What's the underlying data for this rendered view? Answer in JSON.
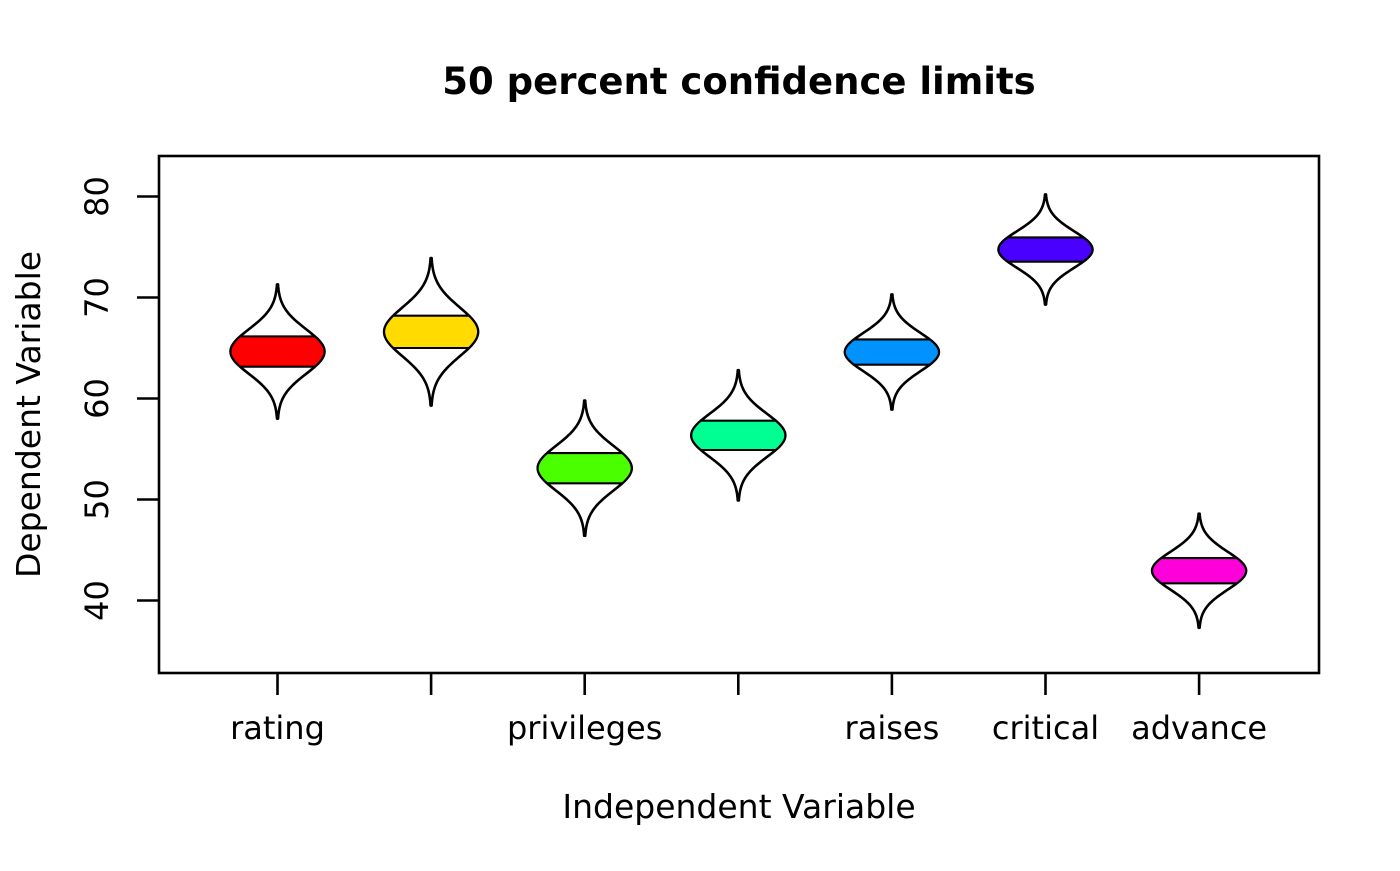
{
  "title": "50 percent confidence limits",
  "chart_data": {
    "type": "violin",
    "title": "50 percent confidence limits",
    "xlabel": "Independent Variable",
    "ylabel": "Dependent Variable",
    "y_ticks": [
      40,
      50,
      60,
      70,
      80
    ],
    "ylim": [
      33,
      84
    ],
    "grid": false,
    "legend": "none",
    "description": "Seven symmetric raindrop/violin shapes (normal-density outlines) each with a filled horizontal band marking the 50 percent confidence interval of the mean",
    "series": [
      {
        "label": "rating",
        "color": "#FF0000",
        "mean": 64.6,
        "ci50_low": 63.1,
        "ci50_high": 66.1,
        "tip_low": 58.0,
        "tip_high": 71.3
      },
      {
        "label": "",
        "color": "#FFDB00",
        "mean": 66.6,
        "ci50_low": 65.0,
        "ci50_high": 68.2,
        "tip_low": 59.3,
        "tip_high": 73.9
      },
      {
        "label": "privileges",
        "color": "#49FF00",
        "mean": 53.1,
        "ci50_low": 51.6,
        "ci50_high": 54.6,
        "tip_low": 46.4,
        "tip_high": 59.8
      },
      {
        "label": "",
        "color": "#00FF92",
        "mean": 56.4,
        "ci50_low": 54.9,
        "ci50_high": 57.8,
        "tip_low": 49.9,
        "tip_high": 62.8
      },
      {
        "label": "raises",
        "color": "#0092FF",
        "mean": 64.6,
        "ci50_low": 63.4,
        "ci50_high": 65.9,
        "tip_low": 58.9,
        "tip_high": 70.3
      },
      {
        "label": "critical",
        "color": "#4900FF",
        "mean": 74.8,
        "ci50_low": 73.6,
        "ci50_high": 76.0,
        "tip_low": 69.3,
        "tip_high": 80.2
      },
      {
        "label": "advance",
        "color": "#FF00DB",
        "mean": 42.9,
        "ci50_low": 41.7,
        "ci50_high": 44.2,
        "tip_low": 37.3,
        "tip_high": 48.6
      }
    ],
    "colors": {
      "outline": "#000000",
      "background": "#FFFFFF"
    }
  }
}
